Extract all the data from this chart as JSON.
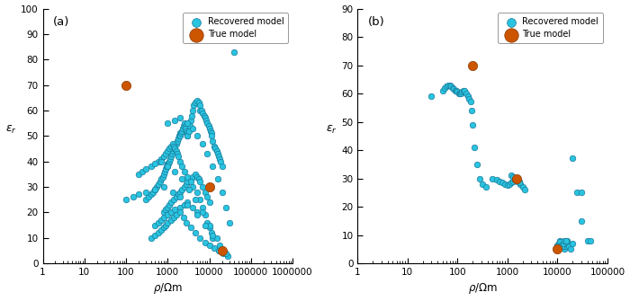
{
  "panel_a": {
    "label": "(a)",
    "xlim_log": [
      0,
      6
    ],
    "ylim": [
      0,
      100
    ],
    "yticks": [
      0,
      10,
      20,
      30,
      40,
      50,
      60,
      70,
      80,
      90,
      100
    ],
    "xticks": [
      1,
      10,
      100,
      1000,
      10000,
      100000,
      1000000
    ],
    "xtick_labels": [
      "1",
      "10",
      "100",
      "1000",
      "10000",
      "100000",
      "1000000"
    ],
    "ylabel": "$\\varepsilon_r$",
    "xlabel": "$\\rho$/Ωm",
    "recovered_rho": [
      300,
      350,
      400,
      450,
      500,
      550,
      600,
      650,
      700,
      750,
      800,
      850,
      900,
      950,
      1000,
      1000,
      1050,
      1100,
      1150,
      1200,
      1250,
      1300,
      1400,
      1500,
      1600,
      1700,
      1800,
      1900,
      2000,
      2000,
      2100,
      2200,
      2300,
      2400,
      2500,
      2600,
      2700,
      2800,
      2900,
      3000,
      3000,
      3200,
      3400,
      3600,
      3800,
      4000,
      4200,
      4500,
      5000,
      5500,
      6000,
      6000,
      6500,
      7000,
      7500,
      8000,
      8500,
      9000,
      9500,
      10000,
      10500,
      11000,
      11000,
      12000,
      13000,
      14000,
      15000,
      16000,
      17000,
      18000,
      19000,
      20000,
      800,
      900,
      1000,
      1100,
      1200,
      1400,
      1600,
      1800,
      2000,
      2200,
      2500,
      2800,
      3000,
      3500,
      4000,
      4500,
      5000,
      5500,
      6000,
      7000,
      8000,
      9000,
      10000,
      500,
      600,
      700,
      800,
      1000,
      1200,
      1500,
      2000,
      2500,
      3000,
      4000,
      5000,
      600,
      700,
      800,
      900,
      1000,
      1100,
      1200,
      1300,
      1400,
      1500,
      1600,
      1700,
      1800,
      2000,
      2200,
      2500,
      3000,
      3500,
      4000,
      5000,
      6000,
      7000,
      8000,
      9000,
      10000,
      11000,
      12000,
      400,
      500,
      600,
      700,
      800,
      900,
      1000,
      1200,
      1400,
      1600,
      2000,
      2400,
      2800,
      3500,
      4500,
      6000,
      8000,
      10000,
      13000,
      17000,
      22000,
      28000,
      1000,
      1500,
      2000,
      3000,
      4000,
      5000,
      7000,
      9000,
      12000,
      16000,
      20000,
      25000,
      30000,
      200,
      250,
      300,
      400,
      500,
      700,
      1000,
      1500,
      2200,
      3200,
      4700,
      7000,
      10000,
      15000,
      100,
      150,
      200,
      300,
      500,
      800,
      1300,
      2000,
      3000,
      5000,
      8000,
      12000,
      18000,
      25000,
      40000
    ],
    "recovered_er": [
      25,
      26,
      27,
      28,
      29,
      30,
      31,
      32,
      33,
      34,
      35,
      36,
      37,
      38,
      39,
      38,
      39,
      40,
      41,
      42,
      43,
      44,
      45,
      46,
      47,
      48,
      49,
      50,
      51,
      50,
      51,
      52,
      53,
      54,
      55,
      54,
      53,
      52,
      51,
      50,
      50,
      52,
      54,
      56,
      58,
      60,
      62,
      63,
      64,
      63,
      62,
      60,
      60,
      59,
      58,
      57,
      56,
      55,
      54,
      53,
      52,
      51,
      50,
      48,
      46,
      45,
      44,
      43,
      42,
      41,
      40,
      38,
      20,
      21,
      22,
      23,
      24,
      25,
      26,
      27,
      28,
      29,
      30,
      31,
      32,
      33,
      34,
      35,
      34,
      33,
      32,
      30,
      28,
      26,
      24,
      15,
      16,
      17,
      18,
      19,
      20,
      21,
      22,
      23,
      24,
      22,
      20,
      40,
      41,
      42,
      43,
      44,
      45,
      46,
      47,
      46,
      45,
      44,
      43,
      42,
      40,
      38,
      36,
      34,
      32,
      30,
      28,
      25,
      22,
      19,
      16,
      14,
      12,
      10,
      10,
      11,
      12,
      13,
      14,
      15,
      16,
      17,
      18,
      19,
      20,
      18,
      16,
      14,
      12,
      10,
      8,
      7,
      6,
      5,
      4,
      3,
      55,
      56,
      57,
      55,
      53,
      50,
      47,
      43,
      38,
      33,
      28,
      22,
      16,
      35,
      36,
      37,
      38,
      39,
      40,
      38,
      36,
      33,
      29,
      25,
      20,
      15,
      10,
      25,
      26,
      27,
      28,
      29,
      30,
      28,
      26,
      23,
      19,
      15,
      11,
      7,
      4,
      83
    ],
    "true_rho": [
      100,
      10000,
      20000
    ],
    "true_er": [
      70,
      30,
      5
    ]
  },
  "panel_b": {
    "label": "(b)",
    "xlim_log": [
      0,
      5
    ],
    "ylim": [
      0,
      90
    ],
    "yticks": [
      0,
      10,
      20,
      30,
      40,
      50,
      60,
      70,
      80,
      90
    ],
    "xticks": [
      1,
      10,
      100,
      1000,
      10000,
      100000
    ],
    "xtick_labels": [
      "1",
      "10",
      "100",
      "1000",
      "10000",
      "100000"
    ],
    "ylabel": "$\\varepsilon_r$",
    "xlabel": "$\\rho$/Ωm",
    "recovered_rho": [
      30,
      50,
      55,
      60,
      65,
      70,
      75,
      80,
      85,
      90,
      95,
      100,
      105,
      110,
      115,
      120,
      130,
      140,
      150,
      160,
      170,
      180,
      190,
      200,
      220,
      250,
      280,
      320,
      370,
      500,
      600,
      700,
      800,
      900,
      1000,
      1100,
      1200,
      1300,
      1400,
      1500,
      1600,
      1700,
      1800,
      2000,
      2200,
      1200,
      1300,
      1400,
      1500,
      1600,
      1700,
      10000,
      10500,
      11000,
      11500,
      12000,
      12500,
      13000,
      13500,
      14000,
      14500,
      15000,
      15500,
      16000,
      17000,
      18000,
      10000,
      10500,
      11000,
      11500,
      12000,
      13000,
      14000,
      15000,
      20000,
      25000,
      30000,
      40000,
      15000,
      20000,
      30000,
      45000
    ],
    "recovered_er": [
      59,
      61,
      62,
      62.5,
      63,
      63,
      62.5,
      62,
      61.5,
      61,
      61,
      60.5,
      60,
      60,
      60,
      60.5,
      61,
      61,
      60,
      59,
      58,
      57,
      54,
      49,
      41,
      35,
      30,
      28,
      27,
      30,
      29.5,
      29,
      28.5,
      28,
      27.5,
      28,
      28.5,
      29,
      29.5,
      30,
      30,
      29,
      28,
      27,
      26,
      31,
      30.5,
      30,
      29.5,
      29,
      28.5,
      6,
      7,
      8,
      7.5,
      7,
      6.5,
      6,
      5.5,
      5,
      6,
      7,
      8,
      7,
      6,
      5,
      6.5,
      7,
      7.5,
      6.5,
      6,
      7,
      8,
      7.5,
      37,
      25,
      15,
      8,
      8,
      7,
      25,
      8
    ],
    "true_rho": [
      200,
      1500,
      10000
    ],
    "true_er": [
      70,
      30,
      5
    ]
  },
  "recovered_color": "#29C4E0",
  "recovered_edge": "#1A7A9A",
  "true_color": "#CC5500",
  "true_edge": "#8B3A00",
  "dot_size_recovered": 22,
  "dot_size_true": 55,
  "recovered_label": "Recovered model",
  "true_label": "True model",
  "bg_color": "#FFFFFF"
}
